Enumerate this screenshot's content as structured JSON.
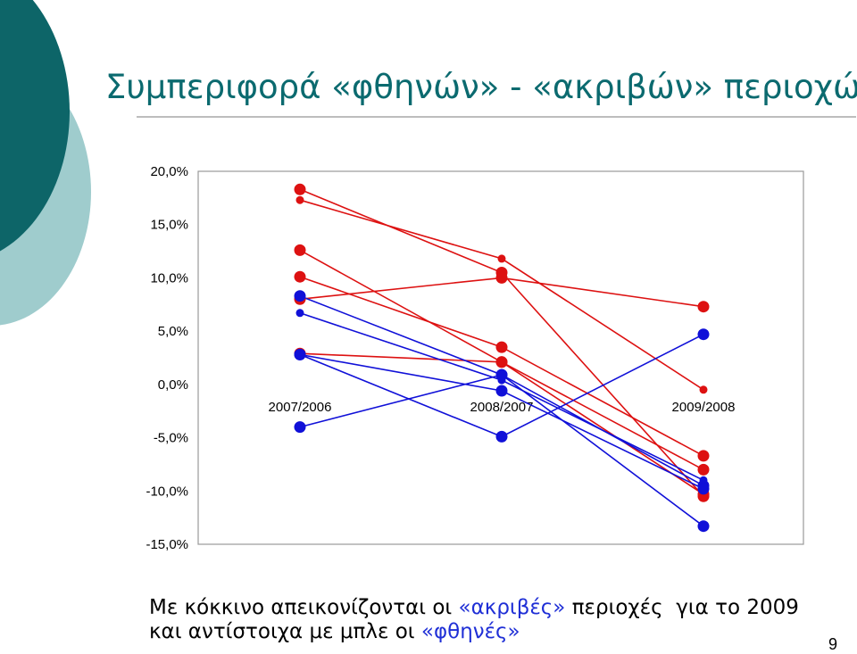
{
  "slide": {
    "title": "Συμπεριφορά «φθηνών» - «ακριβών» περιοχών",
    "caption": {
      "line1_prefix": "Με κόκκινο απεικονίζονται οι ",
      "line1_quoted": "«ακριβές»",
      "line1_suffix": " περιοχές  για το 2009",
      "line2_prefix": "και αντίστοιχα με μπλε οι ",
      "line2_quoted": "«φθηνές»"
    },
    "page_number": "9"
  },
  "colors": {
    "title": "#0b6a6f",
    "deco_dark": "#0d6568",
    "deco_light": "#9fcccd",
    "expensive": "#dd1111",
    "cheap": "#1010d8",
    "quote_blue": "#1f2fd6"
  },
  "chart_data": {
    "type": "line",
    "title": "",
    "xlabel": "",
    "ylabel": "",
    "categories": [
      "2007/2006",
      "2008/2007",
      "2009/2008"
    ],
    "ylim": [
      -15,
      20
    ],
    "yticks": [
      20,
      15,
      10,
      5,
      0,
      -5,
      -10,
      -15
    ],
    "ytick_labels": [
      "20,0%",
      "15,0%",
      "10,0%",
      "5,0%",
      "0,0%",
      "-5,0%",
      "-10,0%",
      "-15,0%"
    ],
    "grid": false,
    "legend": "none",
    "series": [
      {
        "values": [
          18.3,
          10.5,
          -10.5
        ],
        "color": "red",
        "marker": "large"
      },
      {
        "values": [
          17.3,
          11.8,
          -0.5
        ],
        "color": "red",
        "marker": "small"
      },
      {
        "values": [
          12.6,
          2.1,
          -8.0
        ],
        "color": "red",
        "marker": "large"
      },
      {
        "values": [
          10.1,
          3.5,
          -6.7
        ],
        "color": "red",
        "marker": "large"
      },
      {
        "values": [
          8.0,
          10.0,
          7.3
        ],
        "color": "red",
        "marker": "large"
      },
      {
        "values": [
          2.9,
          2.1,
          -10.3
        ],
        "color": "red",
        "marker": "large"
      },
      {
        "values": [
          8.3,
          0.9,
          -9.5
        ],
        "color": "blue",
        "marker": "large"
      },
      {
        "values": [
          6.7,
          0.4,
          -9.0
        ],
        "color": "blue",
        "marker": "small"
      },
      {
        "values": [
          2.8,
          -0.6,
          -9.8
        ],
        "color": "blue",
        "marker": "large"
      },
      {
        "values": [
          -4.0,
          0.9,
          -13.3
        ],
        "color": "blue",
        "marker": "large"
      },
      {
        "values": [
          2.8,
          -4.9,
          4.7
        ],
        "color": "blue",
        "marker": "large"
      }
    ]
  }
}
